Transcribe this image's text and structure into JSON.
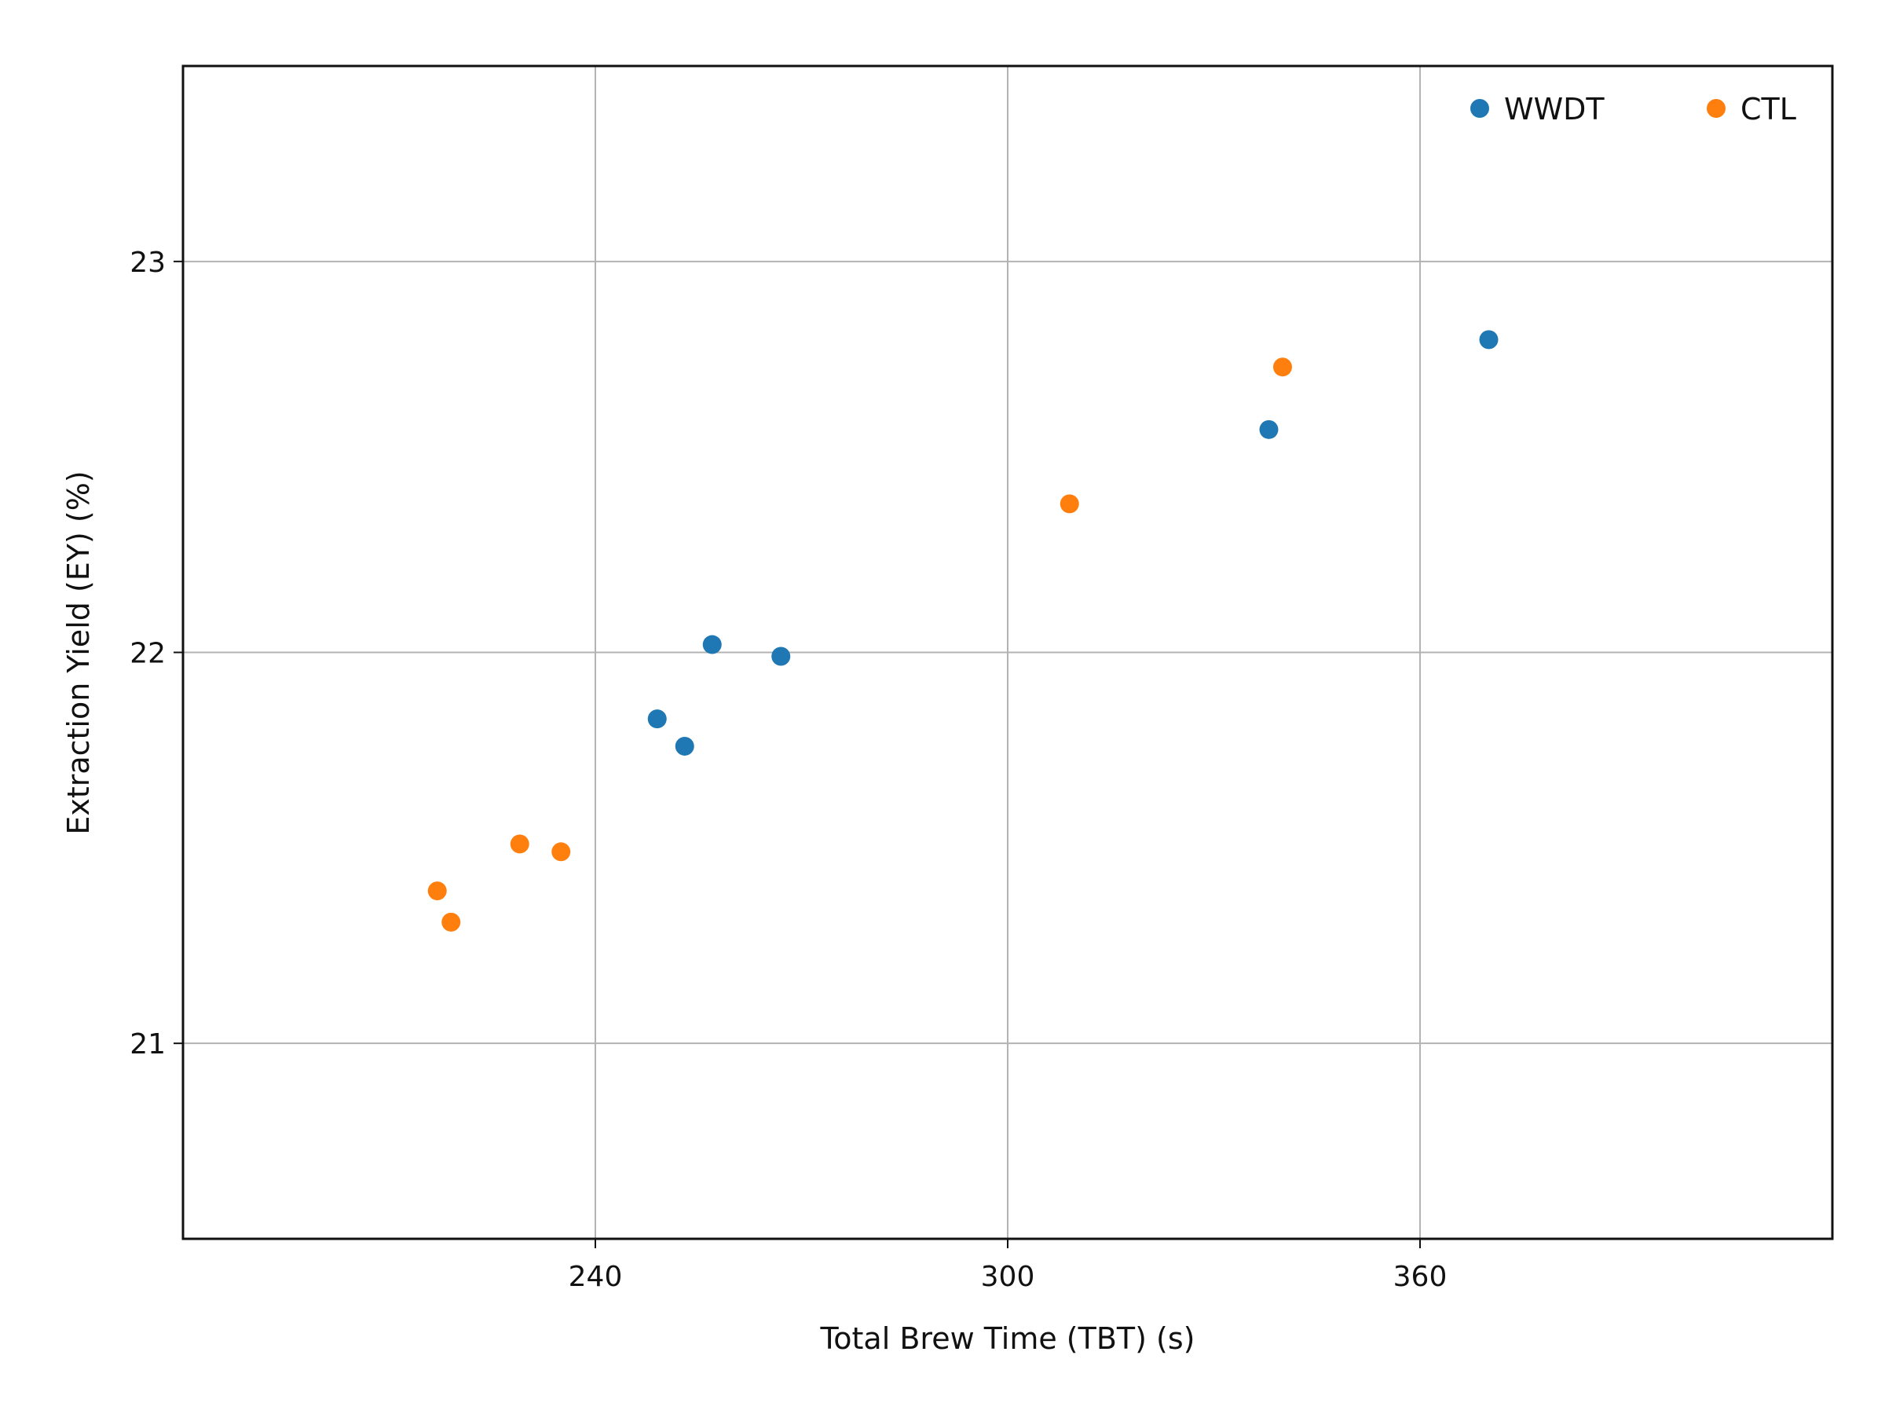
{
  "chart_data": {
    "type": "scatter",
    "xlabel": "Total Brew Time (TBT) (s)",
    "ylabel": "Extraction Yield (EY) (%)",
    "xlim": [
      180,
      420
    ],
    "ylim": [
      20.5,
      23.5
    ],
    "xticks": [
      240,
      300,
      360
    ],
    "yticks": [
      21,
      22,
      23
    ],
    "grid": true,
    "legend_position": "top-right",
    "series": [
      {
        "name": "WWDT",
        "color": "#1f77b4",
        "points": [
          {
            "x": 249,
            "y": 21.83
          },
          {
            "x": 253,
            "y": 21.76
          },
          {
            "x": 257,
            "y": 22.02
          },
          {
            "x": 267,
            "y": 21.99
          },
          {
            "x": 338,
            "y": 22.57
          },
          {
            "x": 370,
            "y": 22.8
          }
        ]
      },
      {
        "name": "CTL",
        "color": "#ff7f0e",
        "points": [
          {
            "x": 217,
            "y": 21.39
          },
          {
            "x": 219,
            "y": 21.31
          },
          {
            "x": 229,
            "y": 21.51
          },
          {
            "x": 235,
            "y": 21.49
          },
          {
            "x": 309,
            "y": 22.38
          },
          {
            "x": 340,
            "y": 22.73
          }
        ]
      }
    ]
  }
}
